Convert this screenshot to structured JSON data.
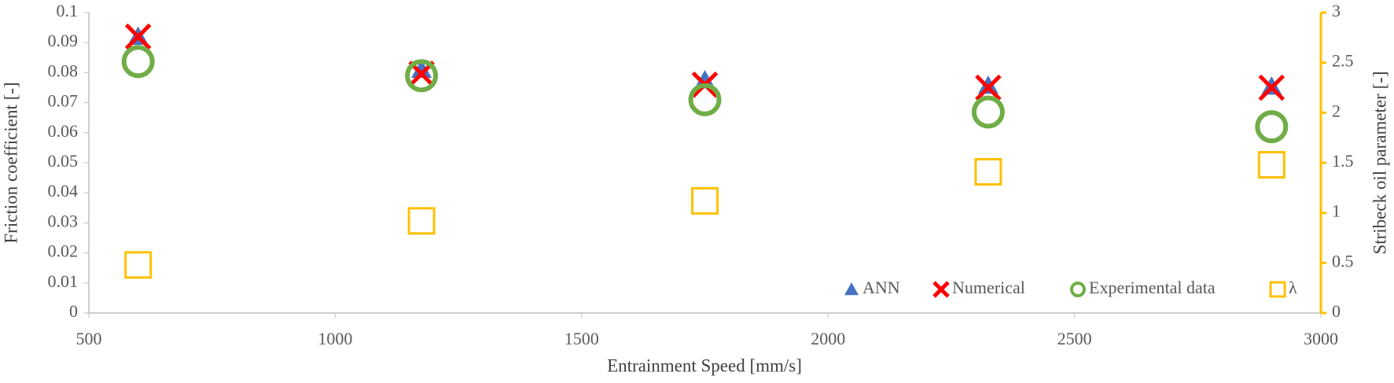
{
  "chart_data": {
    "type": "scatter",
    "x_label": "Entrainment Speed [mm/s]",
    "y_label": "Friction coefficient [-]",
    "y2_label": "Stribeck oil parameter [-]",
    "xlim": [
      500,
      3000
    ],
    "xticks": [
      500,
      1000,
      1500,
      2000,
      2500,
      3000
    ],
    "ylim": [
      0,
      0.1
    ],
    "yticks": [
      0,
      0.01,
      0.02,
      0.03,
      0.04,
      0.05,
      0.06,
      0.07,
      0.08,
      0.09,
      0.1
    ],
    "y2lim": [
      0,
      3
    ],
    "y2ticks": [
      0,
      0.5,
      1,
      1.5,
      2,
      2.5,
      3
    ],
    "legend": "lower right",
    "series": [
      {
        "name": "ANN",
        "color": "#4472c4",
        "marker": "triangle",
        "x": [
          600,
          1175,
          1750,
          2325,
          2900
        ],
        "values": [
          0.092,
          0.081,
          0.0775,
          0.0757,
          0.0754
        ]
      },
      {
        "name": "Numerical",
        "color": "#ff0000",
        "marker": "x",
        "x": [
          600,
          1175,
          1750,
          2325,
          2900
        ],
        "values": [
          0.092,
          0.0796,
          0.076,
          0.075,
          0.075
        ]
      },
      {
        "name": "Experimental data",
        "color": "#70ad47",
        "marker": "circle",
        "x": [
          600,
          1175,
          1750,
          2325,
          2900
        ],
        "values": [
          0.0837,
          0.079,
          0.071,
          0.0669,
          0.062
        ]
      },
      {
        "name": "λ",
        "color": "#ffc000",
        "marker": "square",
        "axis": "y2",
        "x": [
          600,
          1175,
          1750,
          2325,
          2900
        ],
        "values": [
          0.48,
          0.92,
          1.12,
          1.41,
          1.48
        ]
      }
    ]
  }
}
